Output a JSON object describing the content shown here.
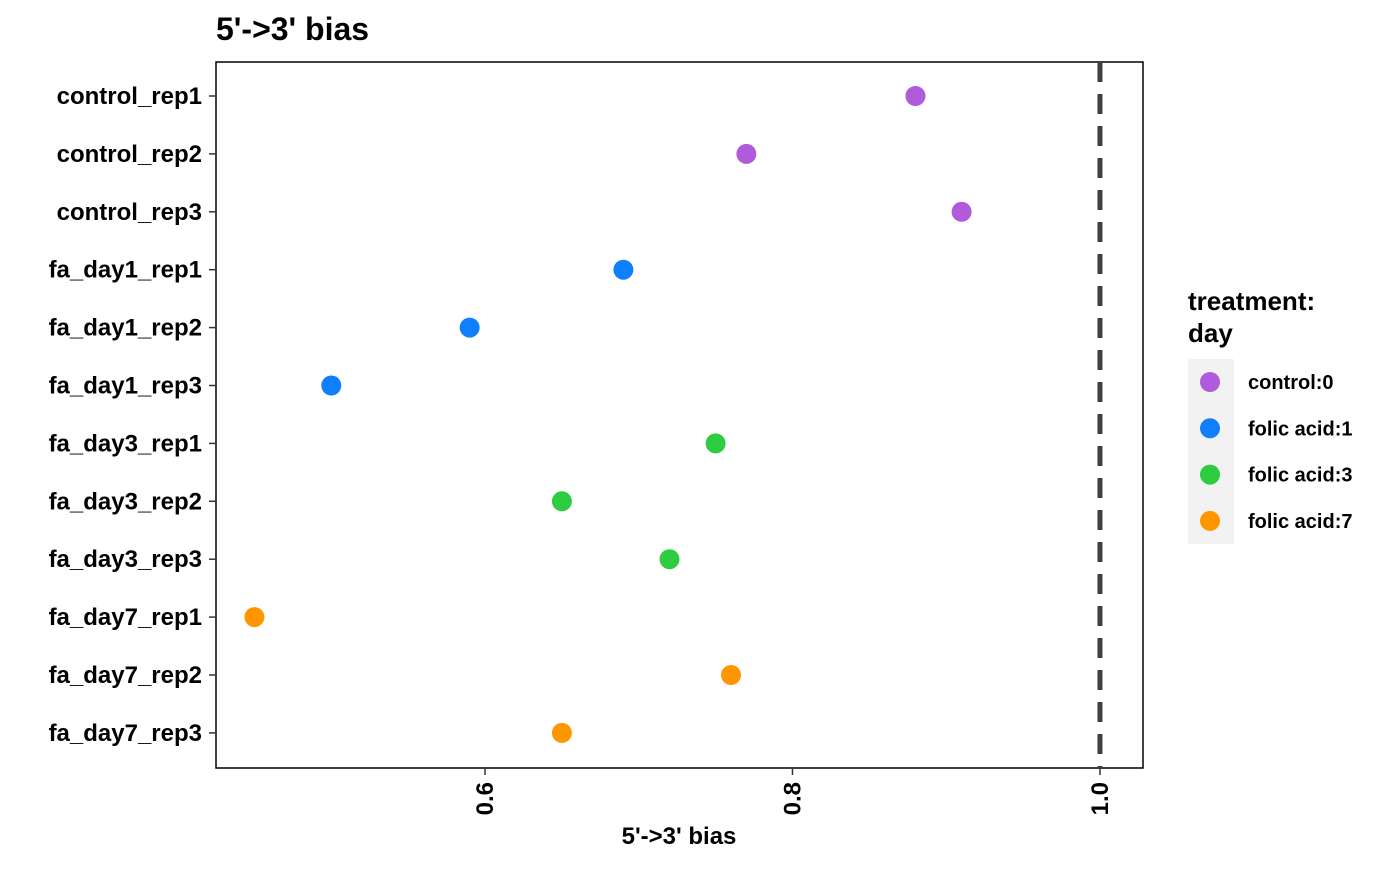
{
  "chart_data": {
    "type": "scatter",
    "title": "5'->3' bias",
    "xlabel": "5'->3' bias",
    "ylabel": "",
    "xlim": [
      0.425,
      1.028
    ],
    "xticks": [
      0.6,
      0.8,
      1.0
    ],
    "xtick_labels": [
      "0.6",
      "0.8",
      "1.0"
    ],
    "reference_line": {
      "x": 1.0,
      "style": "dashed",
      "color": "#404040"
    },
    "categories": [
      "control_rep1",
      "control_rep2",
      "control_rep3",
      "fa_day1_rep1",
      "fa_day1_rep2",
      "fa_day1_rep3",
      "fa_day3_rep1",
      "fa_day3_rep2",
      "fa_day3_rep3",
      "fa_day7_rep1",
      "fa_day7_rep2",
      "fa_day7_rep3"
    ],
    "series": [
      {
        "name": "control:0",
        "color": "#B05BDB",
        "points": [
          {
            "sample": "control_rep1",
            "x": 0.88
          },
          {
            "sample": "control_rep2",
            "x": 0.77
          },
          {
            "sample": "control_rep3",
            "x": 0.91
          }
        ]
      },
      {
        "name": "folic acid:1",
        "color": "#0F7FFE",
        "points": [
          {
            "sample": "fa_day1_rep1",
            "x": 0.69
          },
          {
            "sample": "fa_day1_rep2",
            "x": 0.59
          },
          {
            "sample": "fa_day1_rep3",
            "x": 0.5
          }
        ]
      },
      {
        "name": "folic acid:3",
        "color": "#2ECC40",
        "points": [
          {
            "sample": "fa_day3_rep1",
            "x": 0.75
          },
          {
            "sample": "fa_day3_rep2",
            "x": 0.65
          },
          {
            "sample": "fa_day3_rep3",
            "x": 0.72
          }
        ]
      },
      {
        "name": "folic acid:7",
        "color": "#FF9600",
        "points": [
          {
            "sample": "fa_day7_rep1",
            "x": 0.45
          },
          {
            "sample": "fa_day7_rep2",
            "x": 0.76
          },
          {
            "sample": "fa_day7_rep3",
            "x": 0.65
          }
        ]
      }
    ],
    "legend": {
      "title_lines": [
        "treatment:",
        "day"
      ],
      "placement": "right"
    },
    "grid": false
  }
}
